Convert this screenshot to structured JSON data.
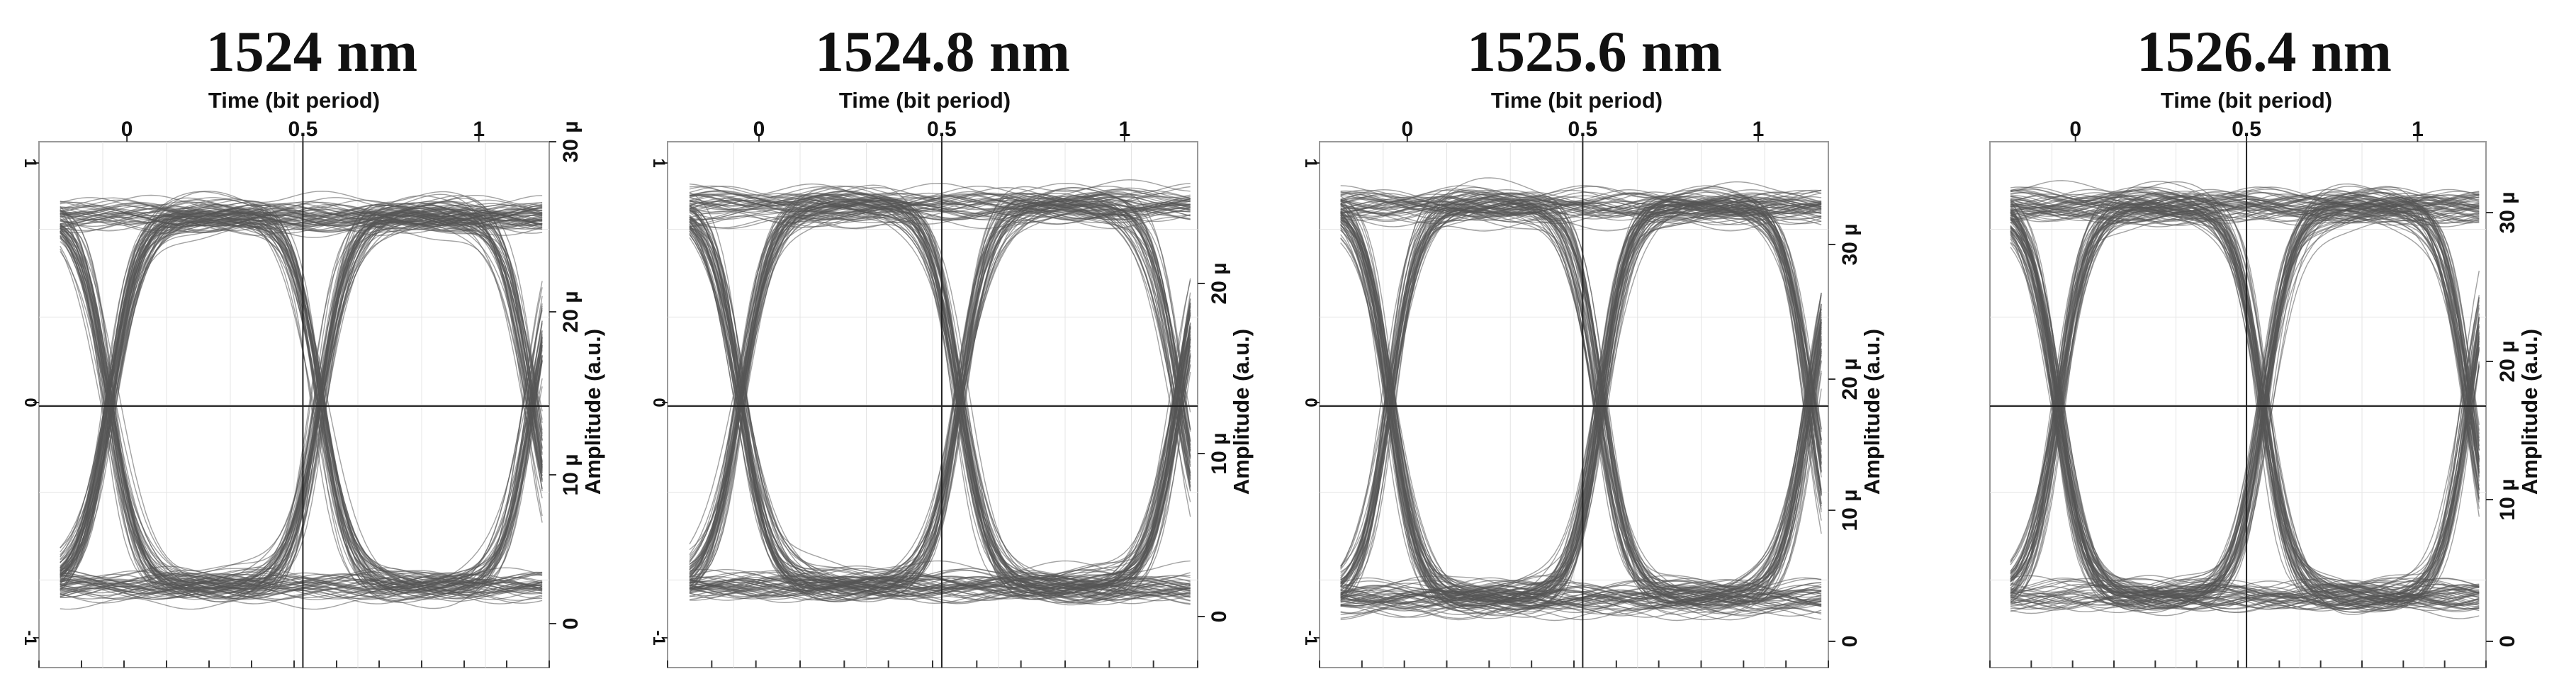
{
  "chart_data": [
    {
      "type": "eye-diagram",
      "title": "1524 nm",
      "xlabel": "Time (bit period)",
      "ylabel": "Amplitude (a.u.)",
      "x_ticks": [
        "0",
        "0.5",
        "1"
      ],
      "y_ticks": [
        "0",
        "10 µ",
        "20 µ",
        "30 µ"
      ],
      "left_ticks": [
        "1",
        "0",
        "-1"
      ],
      "xlim": [
        -0.25,
        1.2
      ],
      "ylim": [
        -1.5,
        31
      ],
      "eye": {
        "high": 26.5,
        "low": 3.5,
        "upper_peak": 20.5,
        "lower_trough": 6.5,
        "crossings": [
          -0.05,
          0.55,
          1.15
        ]
      }
    },
    {
      "type": "eye-diagram",
      "title": "1524.8 nm",
      "xlabel": "Time (bit period)",
      "ylabel": "Amplitude (a.u.)",
      "x_ticks": [
        "0",
        "0.5",
        "1"
      ],
      "y_ticks": [
        "0",
        "10 µ",
        "20 µ"
      ],
      "left_ticks": [
        "1",
        "0",
        "-1"
      ],
      "xlim": [
        -0.25,
        1.2
      ],
      "ylim": [
        -1,
        28
      ],
      "eye": {
        "high": 24.5,
        "low": 3.5,
        "upper_peak": 19,
        "lower_trough": 6.5,
        "crossings": [
          -0.05,
          0.55,
          1.15
        ]
      }
    },
    {
      "type": "eye-diagram",
      "title": "1525.6 nm",
      "xlabel": "Time (bit period)",
      "ylabel": "Amplitude (a.u.)",
      "x_ticks": [
        "0",
        "0.5",
        "1"
      ],
      "y_ticks": [
        "0",
        "10 µ",
        "20 µ",
        "30 µ"
      ],
      "left_ticks": [
        "1",
        "0",
        "-1"
      ],
      "xlim": [
        -0.25,
        1.2
      ],
      "ylim": [
        -1.5,
        36
      ],
      "eye": {
        "high": 31.5,
        "low": 3.5,
        "upper_peak": 25,
        "lower_trough": 7,
        "crossings": [
          -0.05,
          0.55,
          1.15
        ]
      }
    },
    {
      "type": "eye-diagram",
      "title": "1526.4 nm",
      "xlabel": "Time (bit period)",
      "ylabel": "Amplitude (a.u.)",
      "x_ticks": [
        "0",
        "0.5",
        "1"
      ],
      "y_ticks": [
        "0",
        "10 µ",
        "20 µ",
        "30 µ"
      ],
      "left_ticks": [],
      "xlim": [
        -0.25,
        1.2
      ],
      "ylim": [
        -1.5,
        36
      ],
      "eye": {
        "high": 31.5,
        "low": 3.5,
        "upper_peak": 25,
        "lower_trough": 7,
        "crossings": [
          -0.05,
          0.55,
          1.15
        ]
      }
    }
  ]
}
